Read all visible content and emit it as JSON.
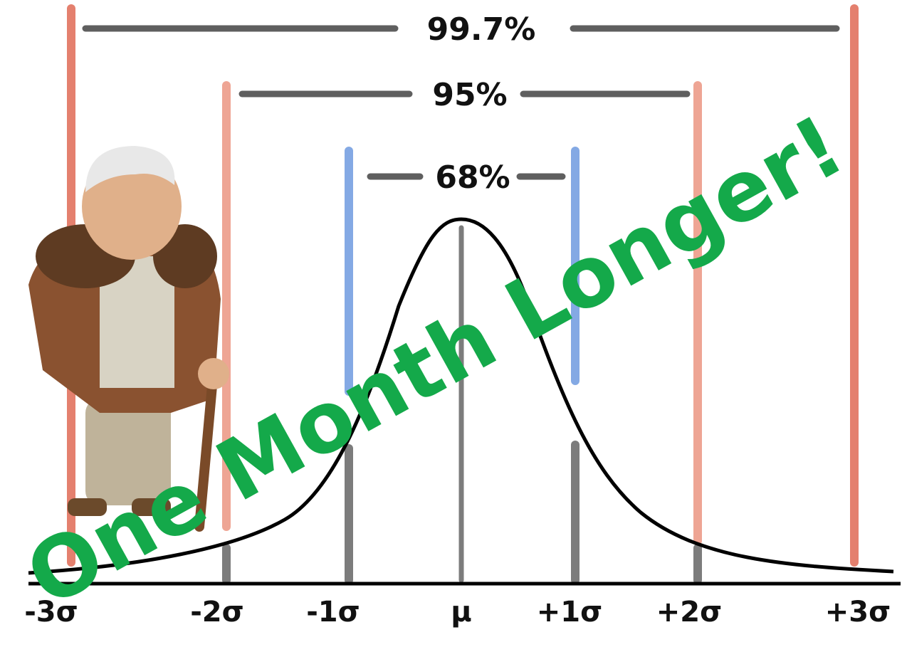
{
  "intervals": [
    "99.7%",
    "95%",
    "68%"
  ],
  "axis_labels": [
    "-3σ",
    "-2σ",
    "-1σ",
    "μ",
    "+1σ",
    "+2σ",
    "+3σ"
  ],
  "overlay_text": "One Month Longer!"
}
